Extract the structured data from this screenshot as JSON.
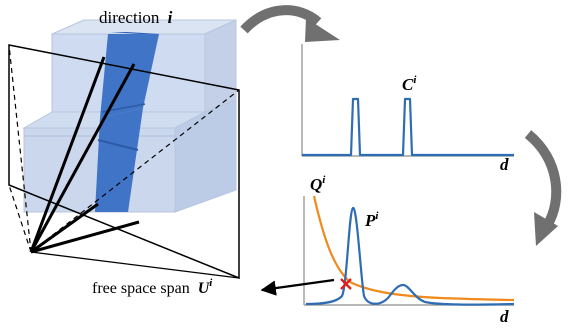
{
  "labels": {
    "direction_text": "direction",
    "direction_symbol": "i",
    "c_label": "C",
    "c_superscript": "i",
    "d_axis_top": "d",
    "q_label": "Q",
    "q_superscript": "i",
    "p_label": "P",
    "p_superscript": "i",
    "d_axis_bottom": "d",
    "free_space_text": "free space span",
    "u_label": "U",
    "u_superscript": "i"
  },
  "colors": {
    "box_fill": "#c9d7ee",
    "box_edge": "#b8c6de",
    "ray_band": "#3f74c6",
    "frame_line": "#000000",
    "occupancy_curve": "#2f6db3",
    "prob_curve": "#2f6db3",
    "q_curve": "#f08a1c",
    "marker": "#e0201b",
    "transition_arrow": "#707070",
    "axis": "#8c8c8c"
  }
}
